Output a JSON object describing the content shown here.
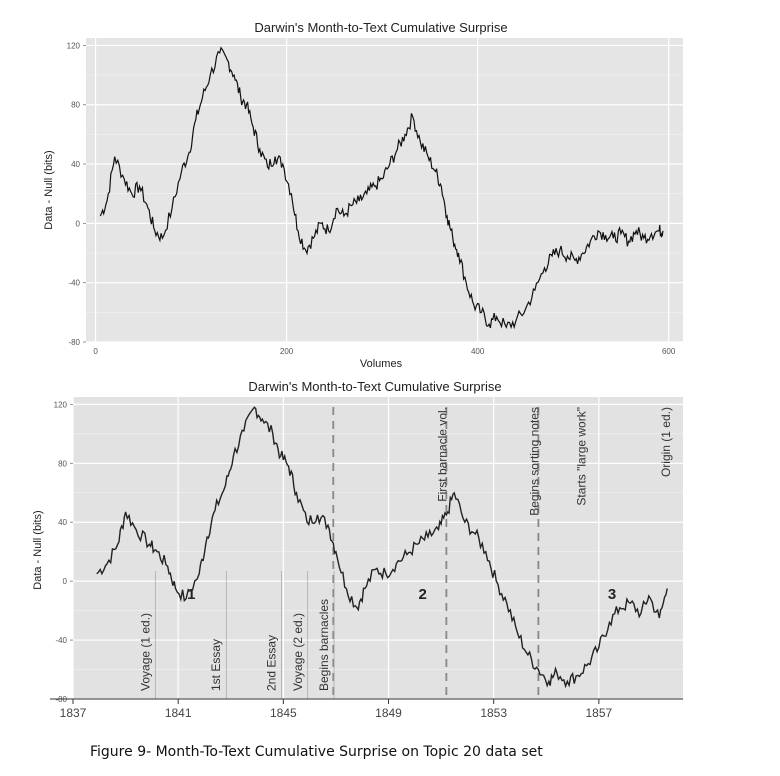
{
  "chart_data": [
    {
      "type": "line",
      "title": "Darwin's Month-to-Text Cumulative Surprise",
      "xlabel": "Volumes",
      "ylabel": "Data - Null (bits)",
      "xlim": [
        -10,
        615
      ],
      "ylim": [
        -80,
        125
      ],
      "xticks": [
        0,
        200,
        400,
        600
      ],
      "yticks": [
        -80,
        -40,
        0,
        40,
        80,
        120
      ],
      "grid": true,
      "series": [
        {
          "x": [
            5,
            12,
            20,
            30,
            38,
            46,
            55,
            62,
            70,
            80,
            90,
            98,
            105,
            112,
            120,
            130,
            138,
            145,
            152,
            158,
            165,
            172,
            180,
            188,
            196,
            205,
            212,
            220,
            228,
            236,
            244,
            252,
            260,
            268,
            276,
            284,
            292,
            300,
            308,
            316,
            324,
            332,
            340,
            348,
            356,
            362,
            368,
            374,
            380,
            388,
            396,
            404,
            412,
            420,
            430,
            440,
            450,
            460,
            470,
            478,
            486,
            494,
            502,
            510,
            518,
            526,
            534,
            542,
            550,
            558,
            566,
            574,
            582,
            590,
            594
          ],
          "y": [
            5,
            15,
            45,
            30,
            20,
            25,
            10,
            -5,
            -10,
            10,
            35,
            48,
            70,
            85,
            100,
            115,
            110,
            100,
            85,
            80,
            65,
            50,
            38,
            45,
            40,
            20,
            -5,
            -18,
            -10,
            0,
            -5,
            10,
            5,
            12,
            15,
            20,
            25,
            30,
            40,
            50,
            60,
            72,
            55,
            45,
            35,
            25,
            5,
            -10,
            -20,
            -40,
            -55,
            -60,
            -68,
            -63,
            -70,
            -66,
            -58,
            -45,
            -30,
            -22,
            -18,
            -22,
            -25,
            -20,
            -12,
            -5,
            -8,
            -10,
            -7,
            -12,
            -5,
            -10,
            -7,
            -5,
            -5
          ]
        }
      ]
    },
    {
      "type": "line",
      "title": "Darwin's Month-to-Text Cumulative Surprise",
      "xlabel": "",
      "ylabel": "Data - Null (bits)",
      "xlim": [
        1837,
        1860.2
      ],
      "ylim": [
        -80,
        125
      ],
      "xticks": [
        1837,
        1841,
        1845,
        1849,
        1853,
        1857
      ],
      "yticks": [
        -80,
        -40,
        0,
        40,
        80,
        120
      ],
      "grid": true,
      "series": [
        {
          "x": [
            1837.9,
            1838.3,
            1838.7,
            1839.0,
            1839.4,
            1839.9,
            1840.2,
            1840.6,
            1840.9,
            1841.3,
            1841.8,
            1842.1,
            1842.4,
            1842.8,
            1843.1,
            1843.5,
            1843.9,
            1844.2,
            1844.6,
            1844.9,
            1845.2,
            1845.5,
            1845.9,
            1846.3,
            1846.7,
            1847.0,
            1847.4,
            1847.8,
            1848.1,
            1848.5,
            1848.9,
            1849.3,
            1849.7,
            1850.1,
            1850.5,
            1850.9,
            1851.2,
            1851.5,
            1851.9,
            1852.3,
            1852.7,
            1853.1,
            1853.5,
            1853.9,
            1854.3,
            1854.7,
            1855.1,
            1855.4,
            1855.8,
            1856.2,
            1856.6,
            1857.0,
            1857.4,
            1857.8,
            1858.2,
            1858.6,
            1858.9,
            1859.3,
            1859.6
          ],
          "y": [
            5,
            12,
            25,
            47,
            35,
            25,
            20,
            10,
            -5,
            -12,
            5,
            30,
            48,
            65,
            85,
            102,
            118,
            110,
            100,
            85,
            78,
            60,
            40,
            45,
            38,
            20,
            -5,
            -18,
            -5,
            8,
            5,
            12,
            18,
            25,
            30,
            35,
            45,
            60,
            40,
            32,
            20,
            0,
            -15,
            -35,
            -50,
            -60,
            -68,
            -62,
            -68,
            -64,
            -56,
            -45,
            -28,
            -18,
            -15,
            -22,
            -10,
            -25,
            -5
          ]
        }
      ],
      "annotations": [
        {
          "label": "Voyage (1 ed.)",
          "x": 1839.9
        },
        {
          "label": "1st Essay",
          "x": 1842.6
        },
        {
          "label": "2nd Essay",
          "x": 1844.7
        },
        {
          "label": "Voyage (2 ed.)",
          "x": 1845.7
        },
        {
          "label": "Begins barnacles",
          "x": 1846.7
        },
        {
          "label": "First barnacle vol.",
          "x": 1851.2
        },
        {
          "label": "Begins sorting notes",
          "x": 1854.7
        },
        {
          "label": "Starts \"large work\"",
          "x": 1856.5
        },
        {
          "label": "Origin (1 ed.)",
          "x": 1859.7
        }
      ],
      "numbers": [
        {
          "label": "1",
          "x": 1841.5,
          "y": -8
        },
        {
          "label": "2",
          "x": 1850.3,
          "y": -8
        },
        {
          "label": "3",
          "x": 1857.5,
          "y": -8
        }
      ],
      "dashed_lines": [
        1846.9,
        1851.2,
        1854.7
      ]
    }
  ],
  "caption": "Figure 9- Month-To-Text Cumulative Surprise on Topic 20 data set"
}
